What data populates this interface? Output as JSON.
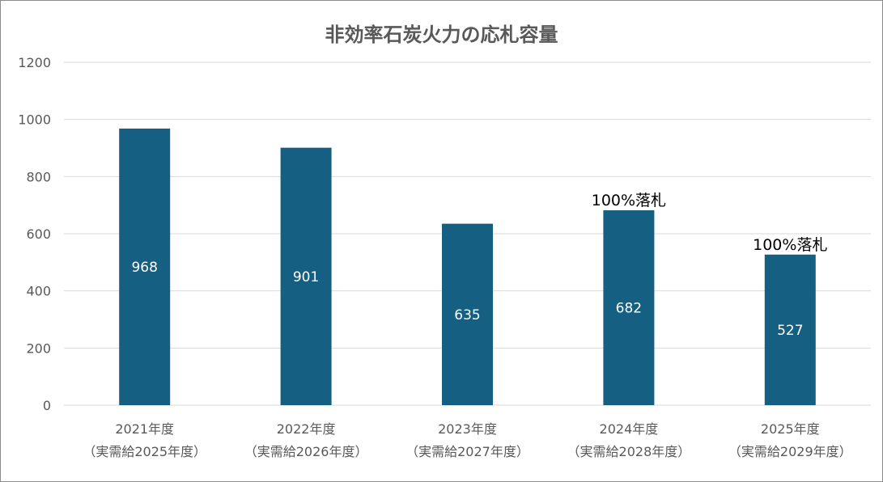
{
  "chart_data": {
    "type": "bar",
    "title": "非効率石炭火力の応札容量",
    "categories": [
      [
        "2021年度",
        "（実需給2025年度）"
      ],
      [
        "2022年度",
        "（実需給2026年度）"
      ],
      [
        "2023年度",
        "（実需給2027年度）"
      ],
      [
        "2024年度",
        "（実需給2028年度）"
      ],
      [
        "2025年度",
        "（実需給2029年度）"
      ]
    ],
    "values": [
      968,
      901,
      635,
      682,
      527
    ],
    "annotations": [
      "",
      "",
      "",
      "100%落札",
      "100%落札"
    ],
    "ylim": [
      0,
      1200
    ],
    "yticks": [
      0,
      200,
      400,
      600,
      800,
      1000,
      1200
    ],
    "grid": true,
    "bar_color": "#156082",
    "xlabel": "",
    "ylabel": ""
  }
}
